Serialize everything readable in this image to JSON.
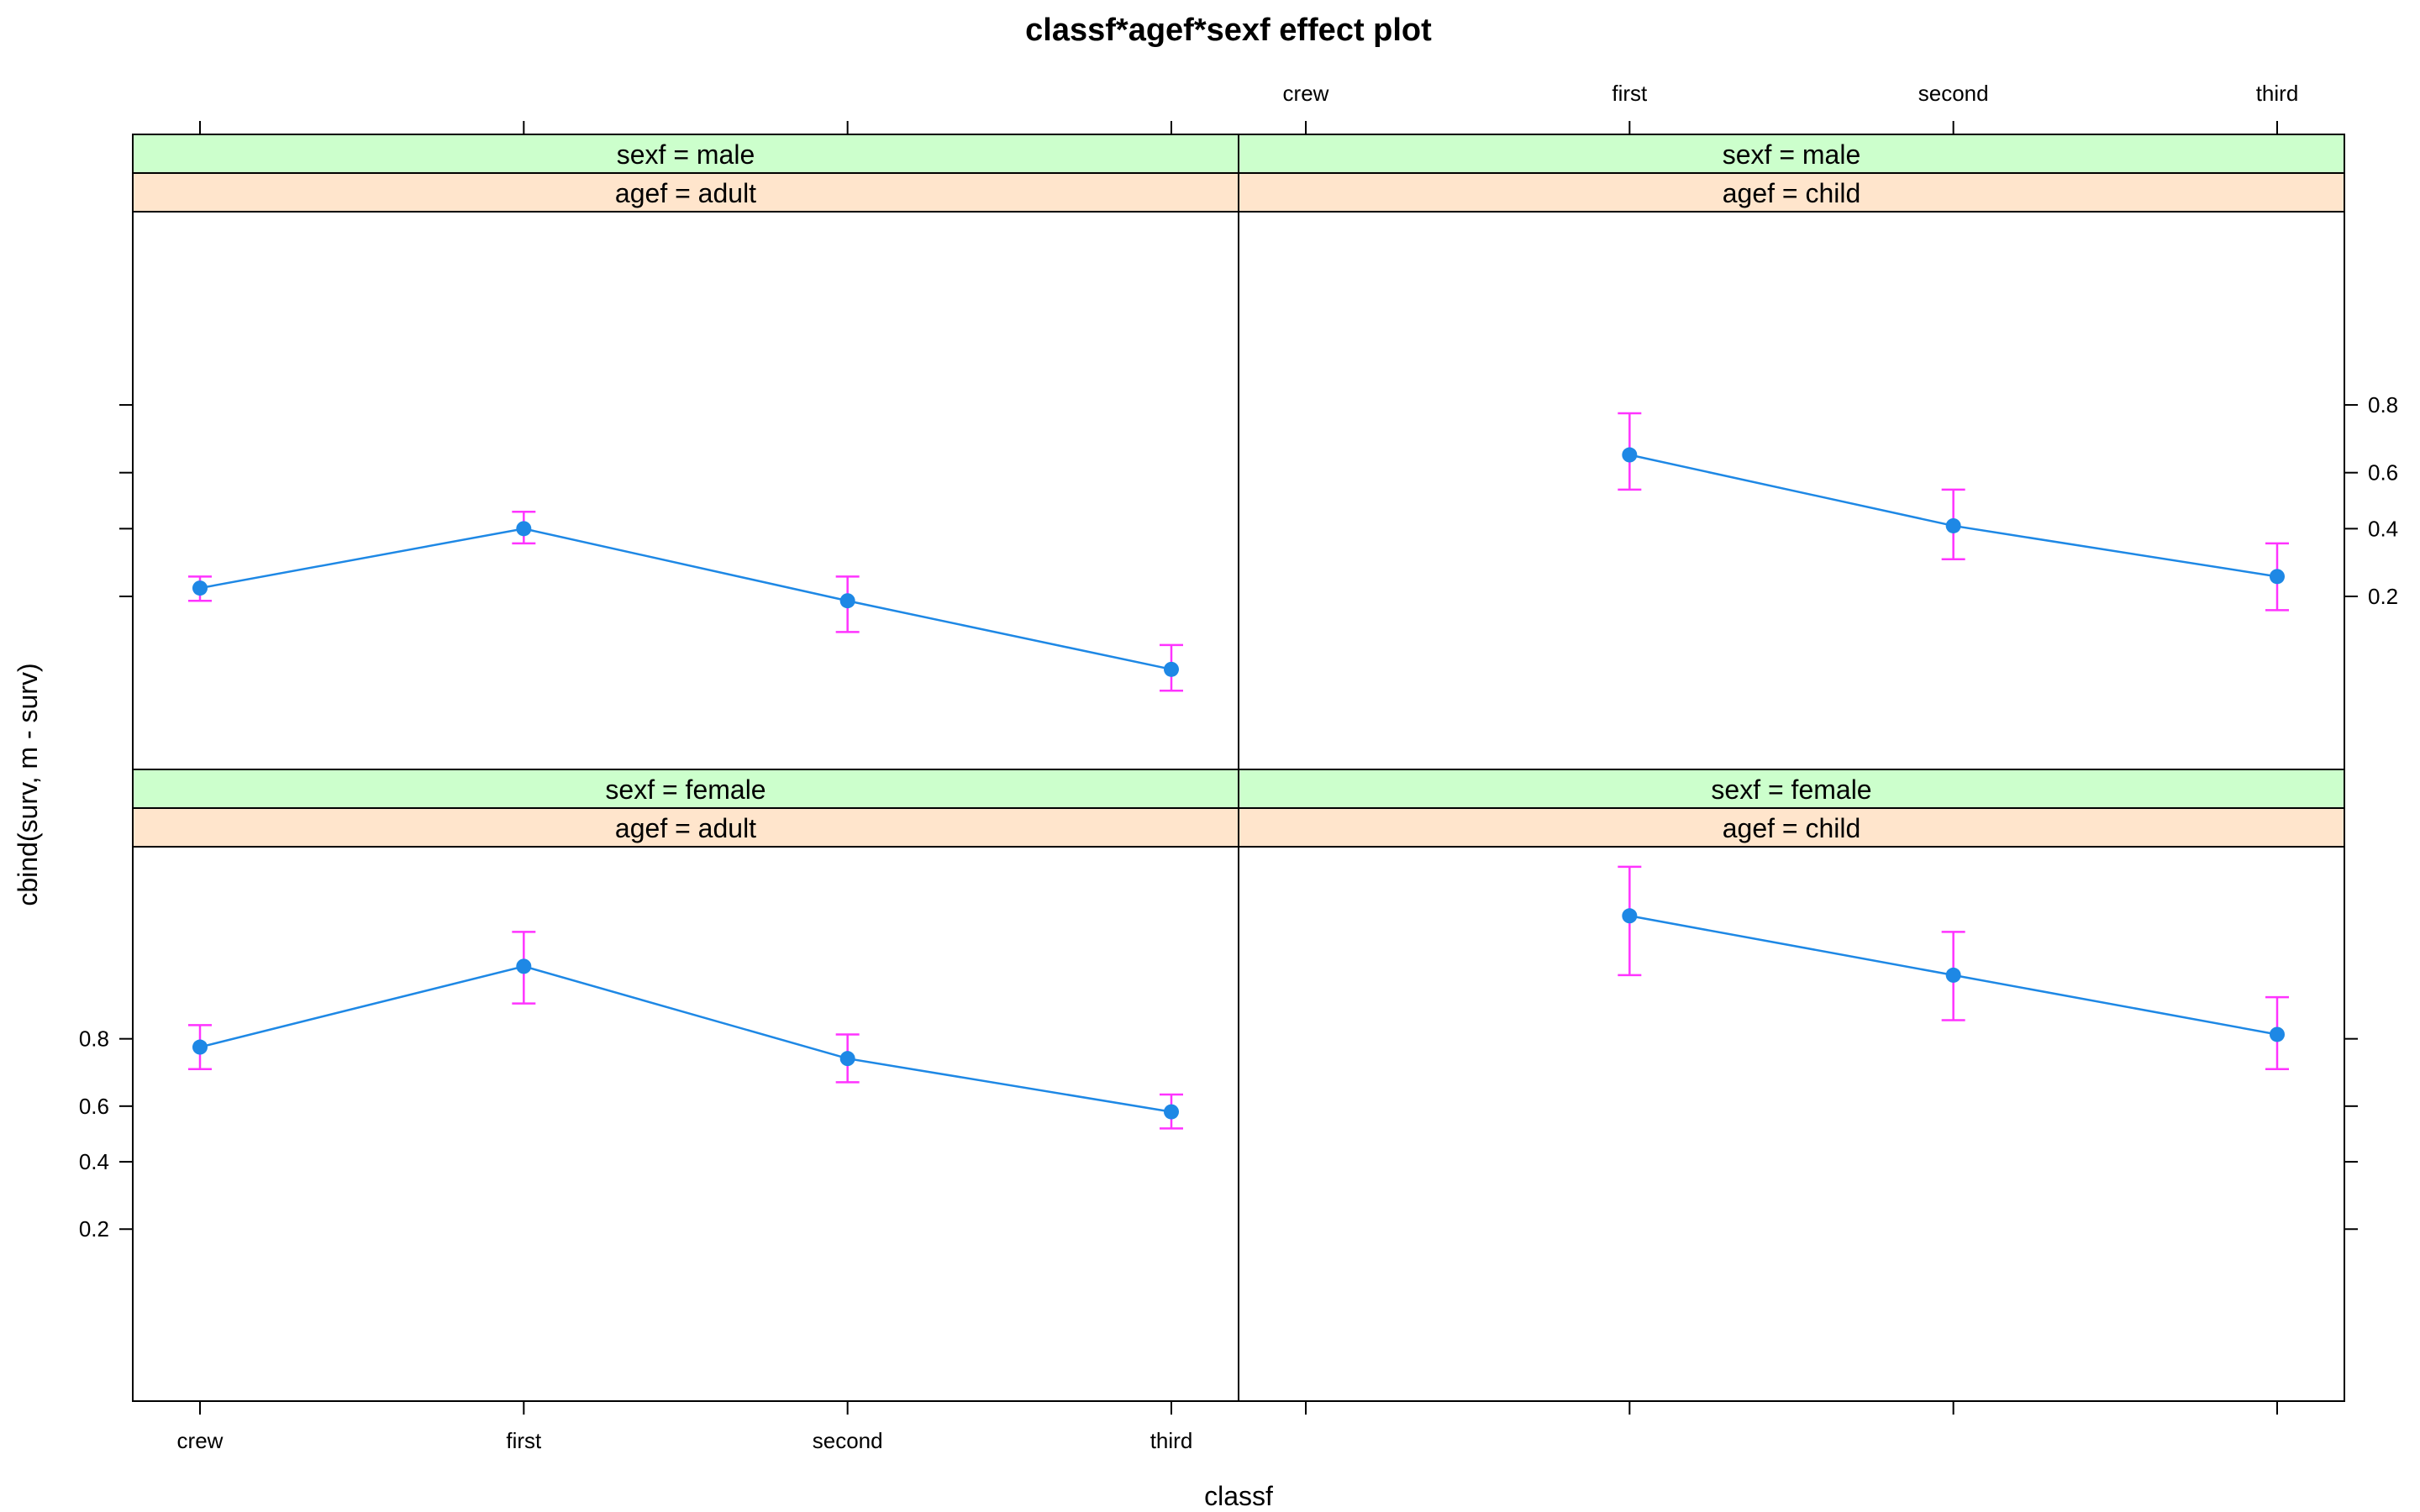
{
  "chart_data": {
    "type": "line",
    "title": "classf*agef*sexf effect plot",
    "xlabel": "classf",
    "ylabel": "cbind(surv, m - surv)",
    "categories": [
      "crew",
      "first",
      "second",
      "third"
    ],
    "yticks": [
      "0.2",
      "0.4",
      "0.6",
      "0.8"
    ],
    "yscale": "logit",
    "ylim": [
      0.02,
      0.985
    ],
    "grid": false,
    "colors": {
      "line": "#1E88E5",
      "point": "#1E88E5",
      "errorbar": "#FF33FF",
      "strip_sex": "#CCFFCC",
      "strip_age": "#FFE5CC"
    },
    "panels": [
      {
        "strip_sex": "sexf = male",
        "strip_age": "agef = adult",
        "fit": [
          0.22,
          0.4,
          0.19,
          0.08
        ],
        "lower": [
          0.19,
          0.35,
          0.13,
          0.06
        ],
        "upper": [
          0.25,
          0.46,
          0.25,
          0.11
        ]
      },
      {
        "strip_sex": "sexf = male",
        "strip_age": "agef = child",
        "fit": [
          null,
          0.66,
          0.41,
          0.25
        ],
        "lower": [
          null,
          0.54,
          0.3,
          0.17
        ],
        "upper": [
          null,
          0.78,
          0.54,
          0.35
        ]
      },
      {
        "strip_sex": "sexf = female",
        "strip_age": "agef = adult",
        "fit": [
          0.78,
          0.92,
          0.75,
          0.58
        ],
        "lower": [
          0.72,
          0.87,
          0.68,
          0.52
        ],
        "upper": [
          0.83,
          0.95,
          0.81,
          0.64
        ]
      },
      {
        "strip_sex": "sexf = female",
        "strip_age": "agef = child",
        "fit": [
          null,
          0.96,
          0.91,
          0.81
        ],
        "lower": [
          null,
          0.91,
          0.84,
          0.72
        ],
        "upper": [
          null,
          0.98,
          0.95,
          0.88
        ]
      }
    ]
  }
}
